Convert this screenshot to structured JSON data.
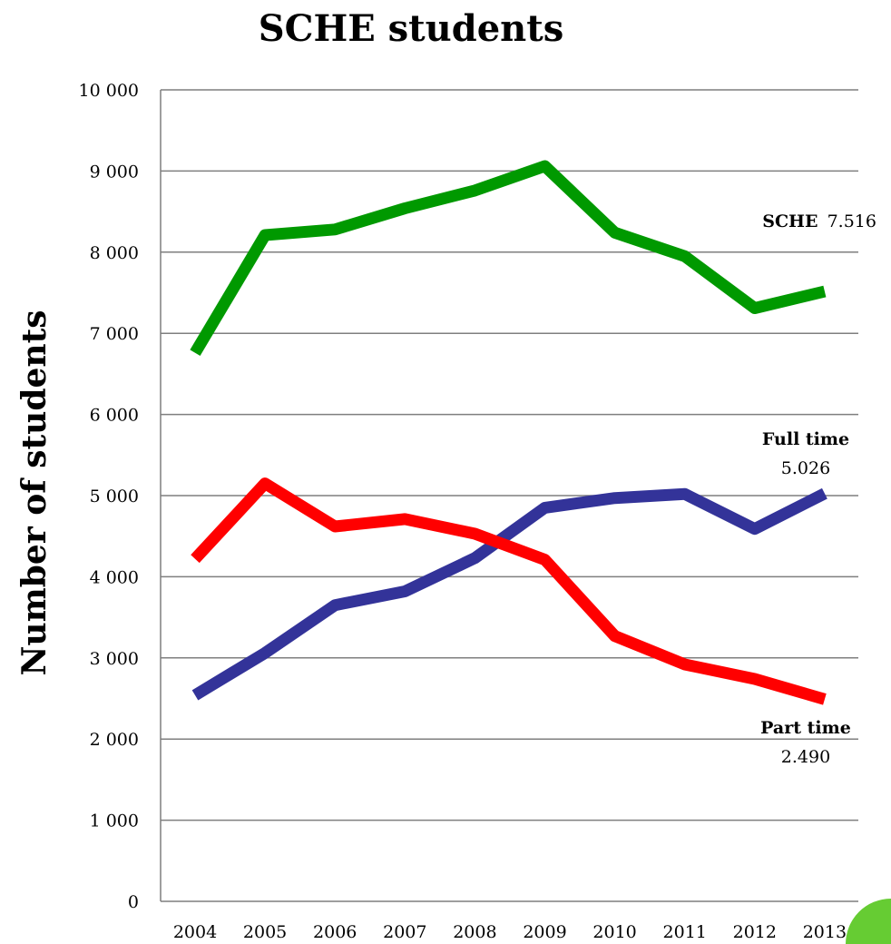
{
  "chart_data": {
    "type": "line",
    "title": "SCHE students",
    "xlabel": "",
    "ylabel": "Number of students",
    "x": [
      "2004",
      "2005",
      "2006",
      "2007",
      "2008",
      "2009",
      "2010",
      "2011",
      "2012",
      "2013"
    ],
    "ylim": [
      0,
      10000
    ],
    "yticks": [
      0,
      1000,
      2000,
      3000,
      4000,
      5000,
      6000,
      7000,
      8000,
      9000,
      10000
    ],
    "ytick_labels": [
      "0",
      "1 000",
      "2 000",
      "3 000",
      "4 000",
      "5 000",
      "6 000",
      "7 000",
      "8 000",
      "9 000",
      "10 000"
    ],
    "grid": true,
    "series": [
      {
        "key": "sche",
        "color": "#009900",
        "values": [
          6760,
          8210,
          8280,
          8540,
          8760,
          9060,
          8240,
          7950,
          7310,
          7516
        ]
      },
      {
        "key": "fulltime",
        "color": "#333399",
        "values": [
          2540,
          3060,
          3650,
          3820,
          4230,
          4850,
          4970,
          5020,
          4590,
          5026
        ]
      },
      {
        "key": "parttime",
        "color": "#ff0000",
        "values": [
          4220,
          5150,
          4620,
          4710,
          4530,
          4210,
          3270,
          2920,
          2740,
          2490
        ]
      }
    ],
    "annotations": {
      "sche": {
        "name": "SCHE",
        "value": "7.516"
      },
      "fulltime": {
        "name": "Full time",
        "value": "5.026"
      },
      "parttime": {
        "name": "Part time",
        "value": "2.490"
      }
    }
  },
  "decor": {
    "corner_circle_color": "#66cc33"
  }
}
